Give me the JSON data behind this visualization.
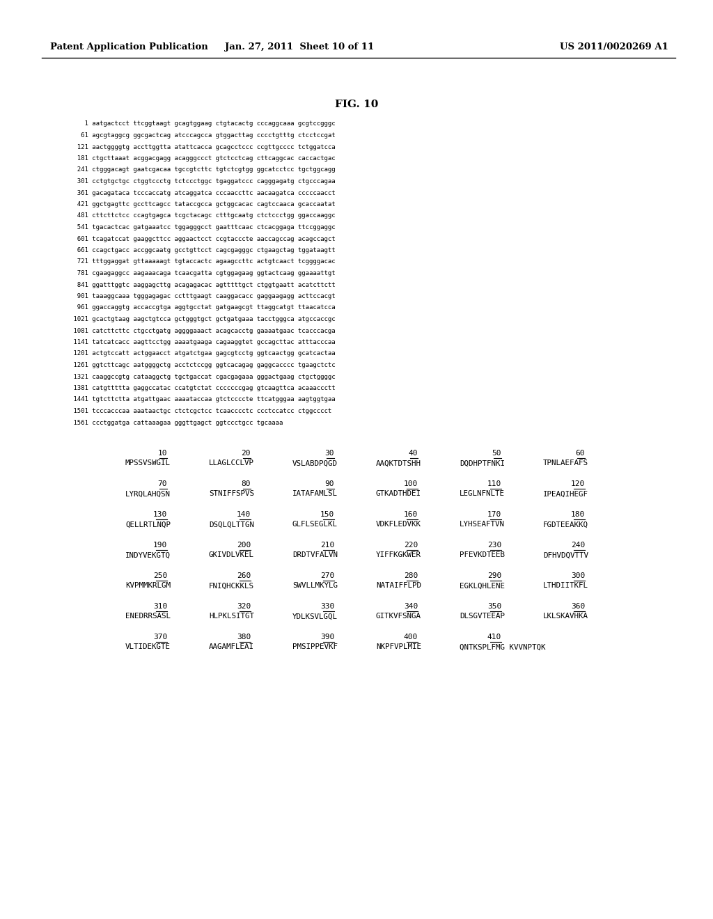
{
  "header_left": "Patent Application Publication",
  "header_center": "Jan. 27, 2011  Sheet 10 of 11",
  "header_right": "US 2011/0020269 A1",
  "fig_title": "FIG. 10",
  "dna_lines": [
    "    1 aatgactcct ttcggtaagt gcagtggaag ctgtacactg cccaggcaaa gcgtccgggc",
    "   61 agcgtaggcg ggcgactcag atcccagcca gtggacttag cccctgtttg ctcctccgat",
    "  121 aactggggtg accttggtta atattcacca gcagcctccc ccgttgcccc tctggatcca",
    "  181 ctgcttaaat acggacgagg acagggccct gtctcctcag cttcaggcac caccactgac",
    "  241 ctgggacagt gaatcgacaa tgccgtcttc tgtctcgtgg ggcatcctcc tgctggcagg",
    "  301 cctgtgctgc ctggtccctg tctccctggc tgaggatccc cagggagatg ctgcccagaa",
    "  361 gacagataca tcccaccatg atcaggatca cccaaccttc aacaagatca cccccaacct",
    "  421 ggctgagttc gccttcagcc tataccgcca gctggcacac cagtccaaca gcaccaatat",
    "  481 cttcttctcc ccagtgagca tcgctacagc ctttgcaatg ctctccctgg ggaccaaggc",
    "  541 tgacactcac gatgaaatcc tggagggcct gaatttcaac ctcacggaga ttccggaggc",
    "  601 tcagatccat gaaggcttcc aggaactcct ccgtacccte aaccagccag acagccagct",
    "  661 ccagctgacc accggcaatg gcctgttcct cagcgagggc ctgaagctag tggataagtt",
    "  721 tttggaggat gttaaaaagt tgtaccactc agaagccttc actgtcaact tcggggacac",
    "  781 cgaagaggcc aagaaacaga tcaacgatta cgtggagaag ggtactcaag ggaaaattgt",
    "  841 ggatttggtc aaggagcttg acagagacac agtttttgct ctggtgaatt acatcttctt",
    "  901 taaaggcaaa tgggagagac cctttgaagt caaggacacc gaggaagagg acttccacgt",
    "  961 ggaccaggtg accaccgtga aggtgcctat gatgaagcgt ttaggcatgt ttaacatcca",
    " 1021 gcactgtaag aagctgtcca gctgggtgct gctgatgaaa tacctgggca atgccaccgc",
    " 1081 catcttcttc ctgcctgatg aggggaaact acagcacctg gaaaatgaac tcacccacga",
    " 1141 tatcatcacc aagttcctgg aaaatgaaga cagaaggtet gccagcttac atttacccaa",
    " 1201 actgtccatt actggaacct atgatctgaa gagcgtcctg ggtcaactgg gcatcactaa",
    " 1261 ggtcttcagc aatggggctg acctctccgg ggtcacagag gaggcacccc tgaagctctc",
    " 1321 caaggccgtg cataaggctg tgctgaccat cgacgagaaa gggactgaag ctgctggggc",
    " 1381 catgttttta gaggccatac ccatgtctat cccccccgag gtcaagttca acaaaccctt",
    " 1441 tgtcttctta atgattgaac aaaataccaa gtctccccte ttcatgggaa aagtggtgaa",
    " 1501 tcccacccaa aaataactgc ctctcgctcc tcaacccctc ccctccatcc ctggcccct",
    " 1561 ccctggatga cattaaagaa gggttgagct ggtccctgcc tgcaaaa"
  ],
  "protein_rows": [
    {
      "numbers": [
        "10",
        "20",
        "30",
        "40",
        "50",
        "60"
      ],
      "seqs": [
        "MPSSVSWGIL",
        "LLAGLCCLVP",
        "VSLABDPQGD",
        "AAQKTDTSHH",
        "DQDHPTFNKI",
        "TPNLAEFAFS"
      ]
    },
    {
      "numbers": [
        "70",
        "80",
        "90",
        "100",
        "110",
        "120"
      ],
      "seqs": [
        "LYRQLAHQSN",
        "STNIFFSPVS",
        "IATAFAMLSL",
        "GTKADTHDEI",
        "LEGLNFNLTE",
        "IPEAQIHEGF"
      ]
    },
    {
      "numbers": [
        "130",
        "140",
        "150",
        "160",
        "170",
        "180"
      ],
      "seqs": [
        "QELLRTLNQP",
        "DSQLQLTTGN",
        "GLFLSEGLKL",
        "VDKFLEDVKK",
        "LYHSEAFTVN",
        "FGDTEEAKKQ"
      ]
    },
    {
      "numbers": [
        "190",
        "200",
        "210",
        "220",
        "230",
        "240"
      ],
      "seqs": [
        "INDYVEKGTQ",
        "GKIVDLVKEL",
        "DRDTVFALVN",
        "YIFFKGKWER",
        "PFEVKDTEEB",
        "DFHVDQVTTV"
      ]
    },
    {
      "numbers": [
        "250",
        "260",
        "270",
        "280",
        "290",
        "300"
      ],
      "seqs": [
        "KVPMMKRLGM",
        "FNIQHCKKLS",
        "SWVLLMKYLG",
        "NATAIFFLPD",
        "EGKLQHLENE",
        "LTHDIITKFL"
      ]
    },
    {
      "numbers": [
        "310",
        "320",
        "330",
        "340",
        "350",
        "360"
      ],
      "seqs": [
        "ENEDRRSASL",
        "HLPKLSITGT",
        "YDLKSVLGQL",
        "GITKVFSNGA",
        "DLSGVTEEAP",
        "LKLSKAVHKA"
      ]
    },
    {
      "numbers": [
        "370",
        "380",
        "390",
        "400",
        "410"
      ],
      "seqs": [
        "VLTIDEKGTE",
        "AAGAMFLEAI",
        "PMSIPPEVKF",
        "NKPFVPLMIE",
        "QNTKSPLFMG KVVNPTQK"
      ]
    }
  ]
}
